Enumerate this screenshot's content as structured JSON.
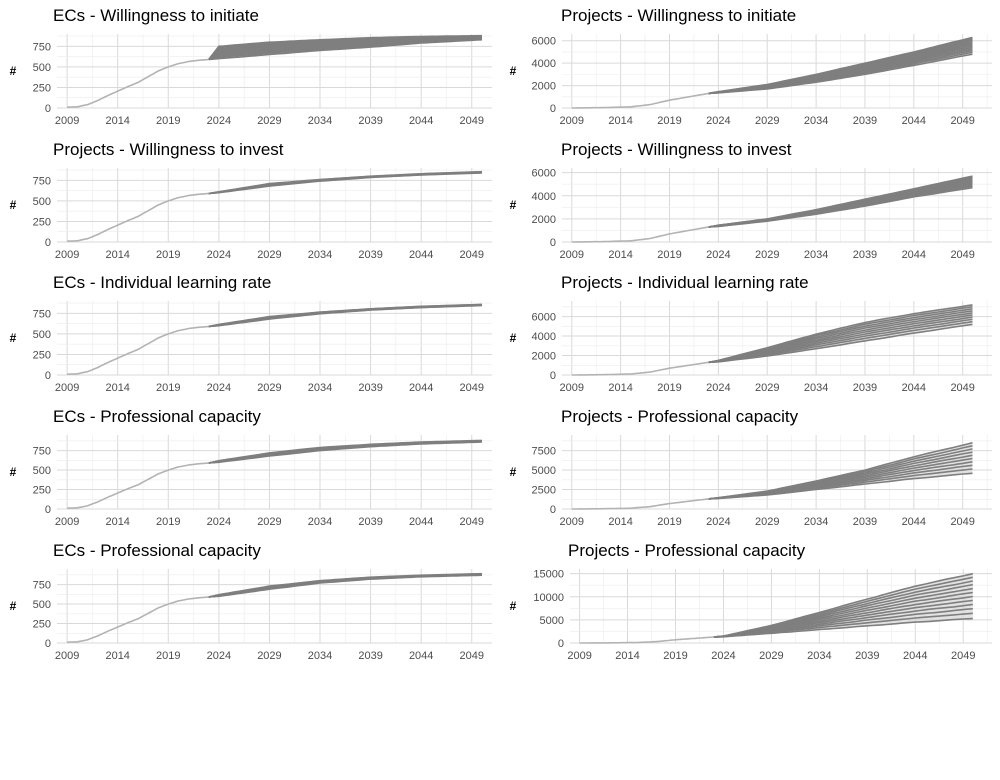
{
  "chart_data": [
    {
      "type": "line",
      "title": "ECs - Willingness to initiate",
      "ylabel": "#",
      "xlabel": "",
      "grid": true,
      "xlim": [
        2008,
        2051
      ],
      "ylim": [
        0,
        900
      ],
      "xticks": [
        2009,
        2014,
        2019,
        2024,
        2029,
        2034,
        2039,
        2044,
        2049
      ],
      "yticks": [
        0,
        250,
        500,
        750
      ],
      "history": {
        "x": [
          2009,
          2010,
          2011,
          2012,
          2013,
          2014,
          2015,
          2016,
          2017,
          2018,
          2019,
          2020,
          2021,
          2022,
          2023
        ],
        "y": [
          10,
          15,
          40,
          90,
          150,
          205,
          260,
          310,
          380,
          450,
          500,
          540,
          565,
          580,
          590
        ]
      },
      "scenario_range": {
        "x": [
          2023,
          2024,
          2029,
          2034,
          2039,
          2044,
          2050
        ],
        "lower": [
          590,
          600,
          650,
          700,
          740,
          790,
          830
        ],
        "upper": [
          590,
          750,
          800,
          830,
          855,
          870,
          880
        ]
      },
      "scenario_count": 12
    },
    {
      "type": "line",
      "title": "Projects - Willingness to initiate",
      "ylabel": "#",
      "xlabel": "",
      "grid": true,
      "xlim": [
        2008,
        2052
      ],
      "ylim": [
        0,
        6600
      ],
      "xticks": [
        2009,
        2014,
        2019,
        2024,
        2029,
        2034,
        2039,
        2044,
        2049
      ],
      "yticks": [
        0,
        2000,
        4000,
        6000
      ],
      "history": {
        "x": [
          2009,
          2012,
          2015,
          2017,
          2019,
          2021,
          2023
        ],
        "y": [
          0,
          30,
          100,
          300,
          700,
          1000,
          1300
        ]
      },
      "scenario_range": {
        "x": [
          2023,
          2024,
          2029,
          2034,
          2039,
          2044,
          2050
        ],
        "lower": [
          1300,
          1350,
          1700,
          2300,
          3000,
          3800,
          4800
        ],
        "upper": [
          1300,
          1450,
          2100,
          3000,
          4000,
          5000,
          6300
        ]
      },
      "scenario_count": 12
    },
    {
      "type": "line",
      "title": "Projects - Willingness to invest",
      "ylabel": "#",
      "xlabel": "",
      "grid": true,
      "xlim": [
        2008,
        2051
      ],
      "ylim": [
        0,
        900
      ],
      "xticks": [
        2009,
        2014,
        2019,
        2024,
        2029,
        2034,
        2039,
        2044,
        2049
      ],
      "yticks": [
        0,
        250,
        500,
        750
      ],
      "history": {
        "x": [
          2009,
          2010,
          2011,
          2012,
          2013,
          2014,
          2015,
          2016,
          2017,
          2018,
          2019,
          2020,
          2021,
          2022,
          2023
        ],
        "y": [
          10,
          15,
          40,
          90,
          150,
          205,
          260,
          310,
          380,
          450,
          500,
          540,
          565,
          580,
          590
        ]
      },
      "scenario_range": {
        "x": [
          2023,
          2024,
          2029,
          2034,
          2039,
          2044,
          2050
        ],
        "lower": [
          590,
          600,
          680,
          740,
          785,
          815,
          840
        ],
        "upper": [
          590,
          610,
          710,
          760,
          800,
          830,
          855
        ]
      },
      "scenario_count": 8
    },
    {
      "type": "line",
      "title": "Projects - Willingness to invest",
      "ylabel": "#",
      "xlabel": "",
      "grid": true,
      "xlim": [
        2008,
        2052
      ],
      "ylim": [
        0,
        6400
      ],
      "xticks": [
        2009,
        2014,
        2019,
        2024,
        2029,
        2034,
        2039,
        2044,
        2049
      ],
      "yticks": [
        0,
        2000,
        4000,
        6000
      ],
      "history": {
        "x": [
          2009,
          2012,
          2015,
          2017,
          2019,
          2021,
          2023
        ],
        "y": [
          0,
          30,
          100,
          300,
          700,
          1000,
          1300
        ]
      },
      "scenario_range": {
        "x": [
          2023,
          2024,
          2029,
          2034,
          2039,
          2044,
          2050
        ],
        "lower": [
          1300,
          1350,
          1800,
          2400,
          3100,
          3900,
          4700
        ],
        "upper": [
          1300,
          1450,
          2000,
          2800,
          3700,
          4600,
          5700
        ]
      },
      "scenario_count": 10
    },
    {
      "type": "line",
      "title": "ECs - Individual learning rate",
      "ylabel": "#",
      "xlabel": "",
      "grid": true,
      "xlim": [
        2008,
        2051
      ],
      "ylim": [
        0,
        900
      ],
      "xticks": [
        2009,
        2014,
        2019,
        2024,
        2029,
        2034,
        2039,
        2044,
        2049
      ],
      "yticks": [
        0,
        250,
        500,
        750
      ],
      "history": {
        "x": [
          2009,
          2010,
          2011,
          2012,
          2013,
          2014,
          2015,
          2016,
          2017,
          2018,
          2019,
          2020,
          2021,
          2022,
          2023
        ],
        "y": [
          10,
          15,
          40,
          90,
          150,
          205,
          260,
          310,
          380,
          450,
          500,
          540,
          565,
          580,
          590
        ]
      },
      "scenario_range": {
        "x": [
          2023,
          2024,
          2029,
          2034,
          2039,
          2044,
          2050
        ],
        "lower": [
          590,
          600,
          680,
          745,
          790,
          820,
          845
        ],
        "upper": [
          590,
          615,
          710,
          765,
          805,
          835,
          858
        ]
      },
      "scenario_count": 8
    },
    {
      "type": "line",
      "title": "Projects - Individual learning rate",
      "ylabel": "#",
      "xlabel": "",
      "grid": true,
      "xlim": [
        2008,
        2052
      ],
      "ylim": [
        0,
        7600
      ],
      "xticks": [
        2009,
        2014,
        2019,
        2024,
        2029,
        2034,
        2039,
        2044,
        2049
      ],
      "yticks": [
        0,
        2000,
        4000,
        6000
      ],
      "history": {
        "x": [
          2009,
          2012,
          2015,
          2017,
          2019,
          2021,
          2023
        ],
        "y": [
          0,
          30,
          100,
          300,
          700,
          1000,
          1300
        ]
      },
      "scenario_range": {
        "x": [
          2023,
          2024,
          2029,
          2034,
          2039,
          2044,
          2050
        ],
        "lower": [
          1300,
          1350,
          1950,
          2700,
          3500,
          4300,
          5200
        ],
        "upper": [
          1300,
          1500,
          2800,
          4200,
          5400,
          6300,
          7200
        ]
      },
      "scenario_count": 10
    },
    {
      "type": "line",
      "title": "ECs - Professional capacity",
      "ylabel": "#",
      "xlabel": "",
      "grid": true,
      "xlim": [
        2008,
        2051
      ],
      "ylim": [
        0,
        950
      ],
      "xticks": [
        2009,
        2014,
        2019,
        2024,
        2029,
        2034,
        2039,
        2044,
        2049
      ],
      "yticks": [
        0,
        250,
        500,
        750
      ],
      "history": {
        "x": [
          2009,
          2010,
          2011,
          2012,
          2013,
          2014,
          2015,
          2016,
          2017,
          2018,
          2019,
          2020,
          2021,
          2022,
          2023
        ],
        "y": [
          10,
          15,
          40,
          90,
          150,
          205,
          260,
          310,
          380,
          450,
          500,
          540,
          565,
          580,
          590
        ]
      },
      "scenario_range": {
        "x": [
          2023,
          2024,
          2029,
          2034,
          2039,
          2044,
          2050
        ],
        "lower": [
          590,
          600,
          680,
          750,
          800,
          835,
          860
        ],
        "upper": [
          590,
          620,
          720,
          790,
          830,
          860,
          880
        ]
      },
      "scenario_count": 8
    },
    {
      "type": "line",
      "title": "Projects - Professional capacity",
      "ylabel": "#",
      "xlabel": "",
      "grid": true,
      "xlim": [
        2008,
        2052
      ],
      "ylim": [
        0,
        9500
      ],
      "xticks": [
        2009,
        2014,
        2019,
        2024,
        2029,
        2034,
        2039,
        2044,
        2049
      ],
      "yticks": [
        0,
        2500,
        5000,
        7500
      ],
      "history": {
        "x": [
          2009,
          2012,
          2015,
          2017,
          2019,
          2021,
          2023
        ],
        "y": [
          0,
          30,
          100,
          300,
          700,
          1000,
          1300
        ]
      },
      "scenario_range": {
        "x": [
          2023,
          2024,
          2029,
          2034,
          2039,
          2044,
          2050
        ],
        "lower": [
          1300,
          1350,
          1800,
          2500,
          3200,
          3900,
          4600
        ],
        "upper": [
          1300,
          1450,
          2300,
          3600,
          5000,
          6700,
          8500
        ]
      },
      "scenario_count": 10
    },
    {
      "type": "line",
      "title": "ECs - Professional capacity",
      "ylabel": "#",
      "xlabel": "",
      "grid": true,
      "xlim": [
        2008,
        2051
      ],
      "ylim": [
        0,
        950
      ],
      "xticks": [
        2009,
        2014,
        2019,
        2024,
        2029,
        2034,
        2039,
        2044,
        2049
      ],
      "yticks": [
        0,
        250,
        500,
        750
      ],
      "history": {
        "x": [
          2009,
          2010,
          2011,
          2012,
          2013,
          2014,
          2015,
          2016,
          2017,
          2018,
          2019,
          2020,
          2021,
          2022,
          2023
        ],
        "y": [
          10,
          15,
          40,
          90,
          150,
          205,
          260,
          310,
          380,
          450,
          500,
          540,
          565,
          580,
          590
        ]
      },
      "scenario_range": {
        "x": [
          2023,
          2024,
          2029,
          2034,
          2039,
          2044,
          2050
        ],
        "lower": [
          590,
          600,
          690,
          770,
          820,
          850,
          870
        ],
        "upper": [
          590,
          620,
          730,
          800,
          845,
          870,
          890
        ]
      },
      "scenario_count": 8
    },
    {
      "type": "line",
      "title": "Projects - Professional capacity",
      "ylabel": "#",
      "xlabel": "",
      "grid": true,
      "xlim": [
        2008,
        2052
      ],
      "ylim": [
        0,
        16000
      ],
      "xticks": [
        2009,
        2014,
        2019,
        2024,
        2029,
        2034,
        2039,
        2044,
        2049
      ],
      "yticks": [
        0,
        5000,
        10000,
        15000
      ],
      "history": {
        "x": [
          2009,
          2012,
          2015,
          2017,
          2019,
          2021,
          2023
        ],
        "y": [
          0,
          30,
          100,
          300,
          700,
          1000,
          1300
        ]
      },
      "scenario_range": {
        "x": [
          2023,
          2024,
          2029,
          2034,
          2039,
          2044,
          2050
        ],
        "lower": [
          1300,
          1350,
          2100,
          2900,
          3700,
          4500,
          5300
        ],
        "upper": [
          1300,
          1500,
          3800,
          6600,
          9500,
          12300,
          15000
        ]
      },
      "scenario_count": 12
    }
  ]
}
